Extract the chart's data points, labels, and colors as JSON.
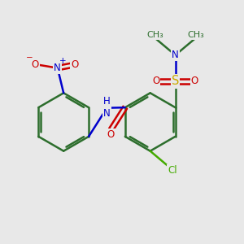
{
  "bg_color": "#e8e8e8",
  "bond_color": "#2d6e2d",
  "bond_width": 1.8,
  "atom_colors": {
    "C": "#2d6e2d",
    "N": "#0000cc",
    "O": "#cc0000",
    "S": "#ccaa00",
    "Cl": "#44aa00"
  },
  "font_size": 8.5,
  "fig_width": 3.0,
  "fig_height": 3.0,
  "xlim": [
    -0.2,
    5.8
  ],
  "ylim": [
    -1.2,
    4.8
  ]
}
